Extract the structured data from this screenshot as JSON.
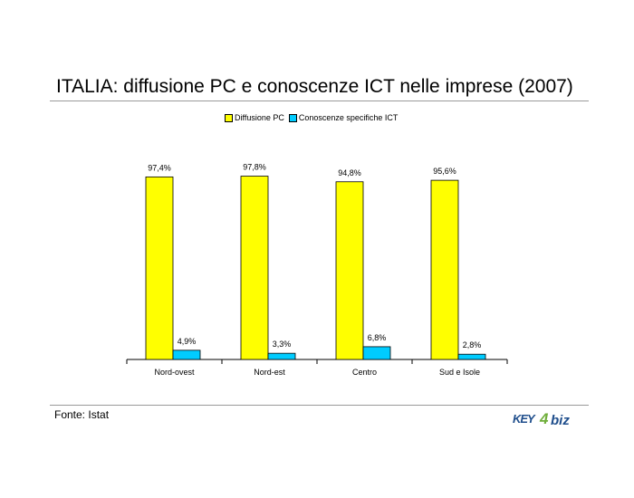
{
  "page": {
    "title": "ITALIA: diffusione PC e conoscenze ICT nelle imprese (2007)",
    "source": "Fonte: Istat",
    "logo": {
      "left": "KEY",
      "digit": "4",
      "right": "biz"
    }
  },
  "chart_data": {
    "type": "bar",
    "title": "",
    "xlabel": "",
    "ylabel": "",
    "categories": [
      "Nord-ovest",
      "Nord-est",
      "Centro",
      "Sud e Isole"
    ],
    "series": [
      {
        "name": "Diffusione PC",
        "values": [
          97.4,
          97.8,
          94.8,
          95.6
        ],
        "labels": [
          "97,4%",
          "97,8%",
          "94,8%",
          "95,6%"
        ],
        "color": "#ffff00"
      },
      {
        "name": "Conoscenze specifiche ICT",
        "values": [
          4.9,
          3.3,
          6.8,
          2.8
        ],
        "labels": [
          "4,9%",
          "3,3%",
          "6,8%",
          "2,8%"
        ],
        "color": "#00ccff"
      }
    ],
    "ylim": [
      0,
      100
    ],
    "grid": false,
    "legend_position": "top"
  },
  "colors": {
    "bar_outline": "#000000",
    "logo_blue": "#1f4e8c",
    "logo_green": "#6fae3a"
  }
}
